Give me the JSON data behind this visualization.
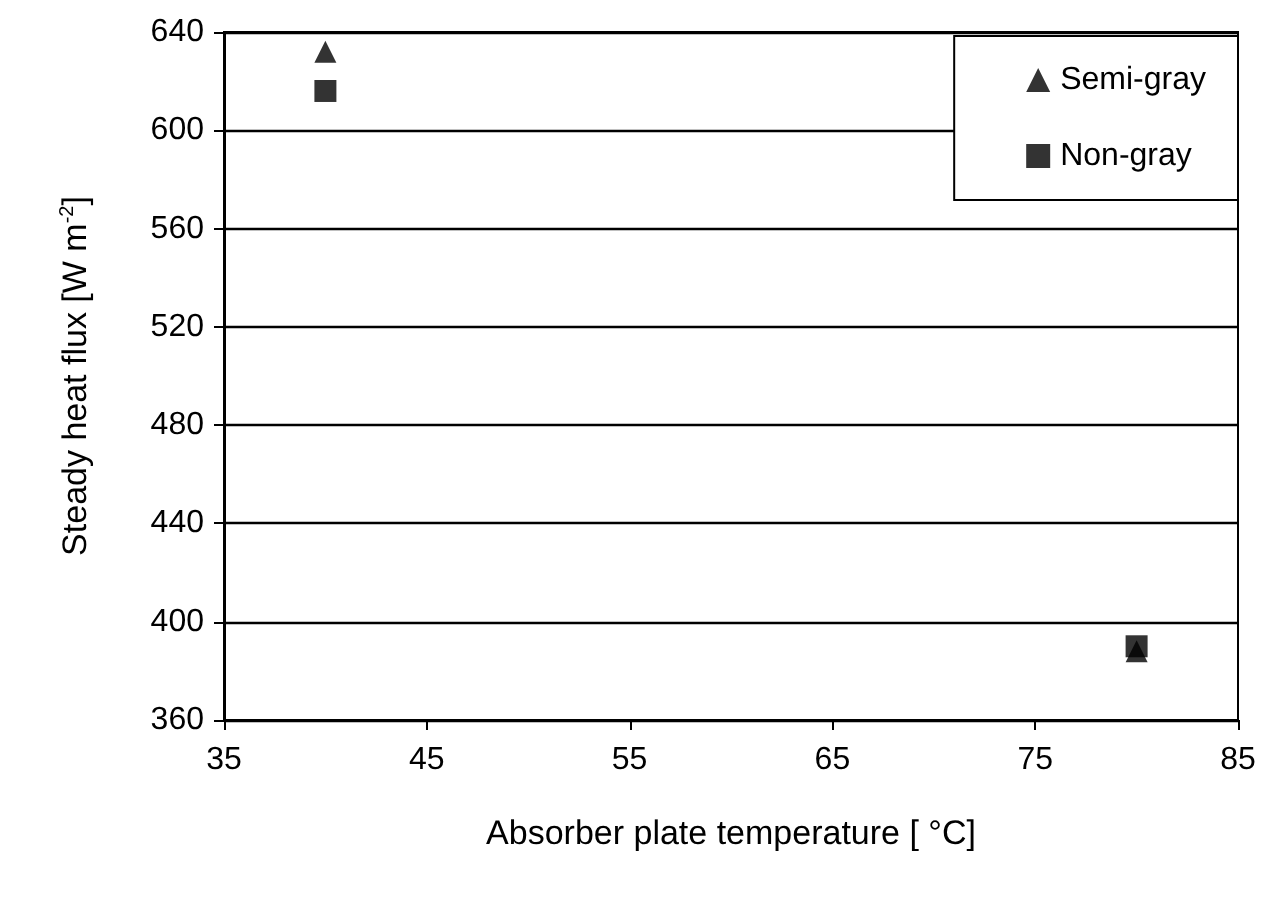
{
  "chart_data": {
    "type": "scatter",
    "xlabel": "Absorber plate temperature [ °C]",
    "ylabel": "Steady heat flux [W m$^{-2}$]",
    "x": [
      40,
      80
    ],
    "series": [
      {
        "name": "Semi-gray",
        "color": "#000000",
        "marker": "triangle",
        "values": [
          632,
          388
        ]
      },
      {
        "name": "Non-gray",
        "color": "#000000",
        "marker": "square",
        "values": [
          616,
          390
        ]
      }
    ],
    "xlim": [
      35,
      85
    ],
    "xticks": [
      35,
      45,
      55,
      65,
      75,
      85
    ],
    "ylim": [
      360,
      640
    ],
    "yticks": [
      360,
      400,
      440,
      480,
      520,
      560,
      600,
      640
    ],
    "grid": "y",
    "legend": "top right"
  }
}
